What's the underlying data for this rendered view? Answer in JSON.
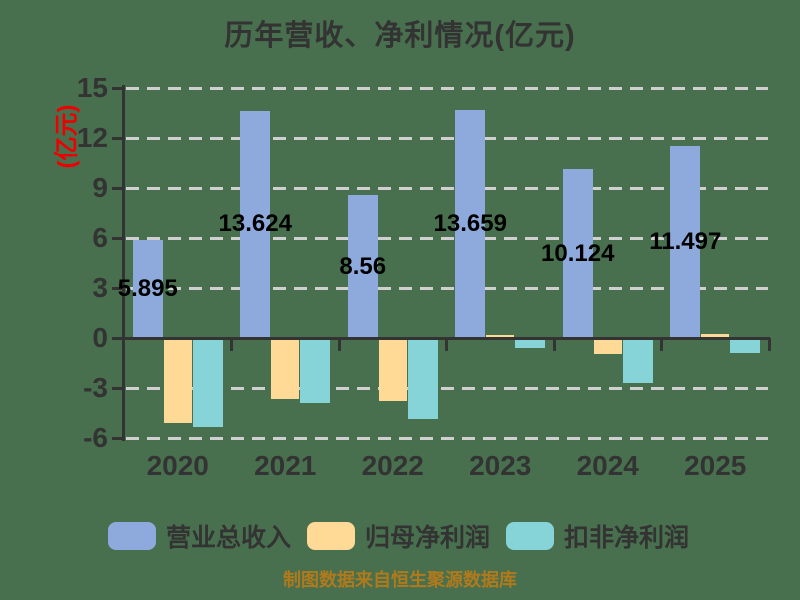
{
  "title": "历年营收、净利情况(亿元)",
  "y_axis_unit": "(亿元)",
  "caption": "制图数据来自恒生聚源数据库",
  "colors": {
    "background": "#48704E",
    "revenue_bar": "#8EA9DB",
    "net_profit_bar": "#FFD996",
    "non_gaap_bar": "#87D4D8",
    "axis": "#333333",
    "gridline": "#D0D0D0",
    "text_dark": "#333333",
    "unit_label": "#EE0000",
    "value_label": "#000000",
    "caption": "#B07A1C"
  },
  "chart_data": {
    "type": "bar",
    "categories": [
      "2020",
      "2021",
      "2022",
      "2023",
      "2024",
      "2025"
    ],
    "series": [
      {
        "name": "营业总收入",
        "color": "#8EA9DB",
        "values": [
          5.895,
          13.624,
          8.56,
          13.659,
          10.124,
          11.497
        ],
        "value_labels": [
          "5.895",
          "13.624",
          "8.56",
          "13.659",
          "10.124",
          "11.497"
        ]
      },
      {
        "name": "归母净利润",
        "color": "#FFD996",
        "values": [
          -5.1,
          -3.65,
          -3.8,
          0.2,
          -0.95,
          0.26
        ],
        "value_labels": []
      },
      {
        "name": "扣非净利润",
        "color": "#87D4D8",
        "values": [
          -5.35,
          -3.9,
          -4.85,
          -0.6,
          -2.7,
          -0.9
        ],
        "value_labels": []
      }
    ],
    "title": "历年营收、净利情况(亿元)",
    "ylabel": "(亿元)",
    "yticks": [
      15,
      12,
      9,
      6,
      3,
      0,
      -3,
      -6
    ],
    "ylim": [
      -6,
      15
    ],
    "grid": "dashed-horizontal",
    "legend_position": "bottom",
    "value_labels_shown_for": "营业总收入"
  }
}
